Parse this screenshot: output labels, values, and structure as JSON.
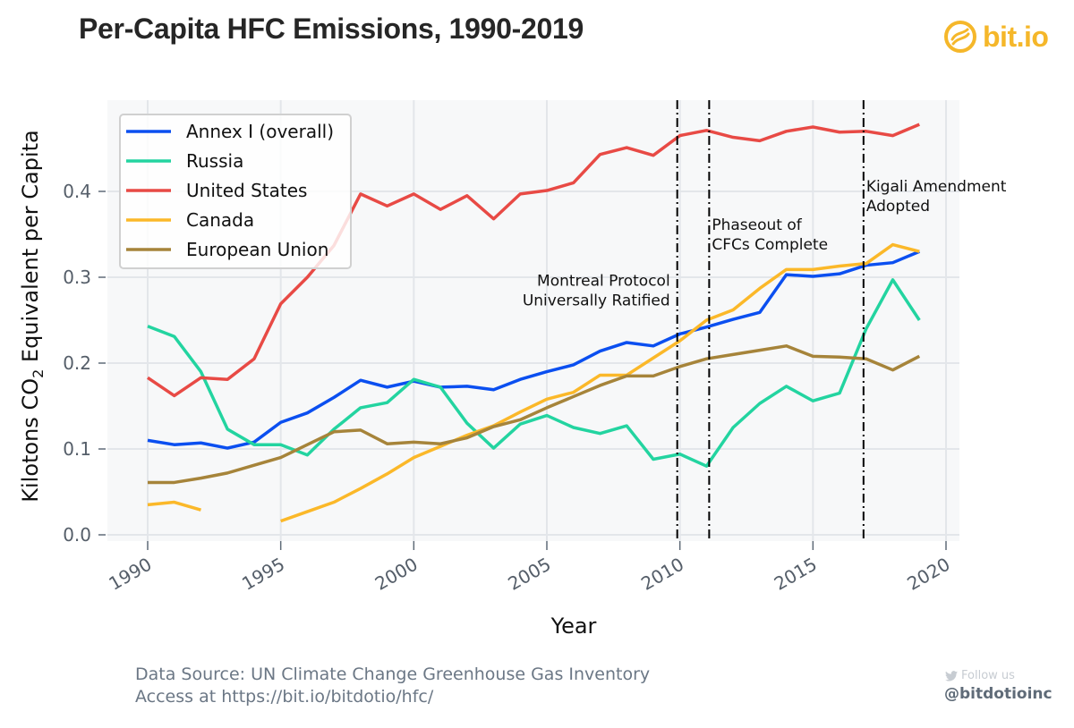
{
  "header": {
    "title": "Per-Capita HFC Emissions, 1990-2019",
    "logo_text": "bit.io",
    "logo_icon": "bitio-swirl-icon",
    "brand_color": "#f5b72a"
  },
  "footer": {
    "source_line": "Data Source: UN Climate Change Greenhouse Gas Inventory",
    "access_line": "Access at https://bit.io/bitdotio/hfc/",
    "follow_label": "Follow us",
    "follow_icon": "twitter-bird-icon",
    "handle": "@bitdotioinc"
  },
  "chart_data": {
    "type": "line",
    "title": "Per-Capita HFC Emissions, 1990-2019",
    "xlabel": "Year",
    "ylabel": "Kilotons CO2 Equivalent per Capita",
    "ylabel_parts": {
      "before": "Kilotons CO",
      "sub": "2",
      "after": " Equivalent per Capita"
    },
    "xlim": [
      1989.5,
      2020.5
    ],
    "ylim": [
      -0.007,
      0.505
    ],
    "xticks": [
      1990,
      1995,
      2000,
      2005,
      2010,
      2015,
      2020
    ],
    "xtick_labels": [
      "1990",
      "1995",
      "2000",
      "2005",
      "2010",
      "2015",
      "2020"
    ],
    "yticks": [
      0.0,
      0.1,
      0.2,
      0.3,
      0.4
    ],
    "ytick_labels": [
      "0.0",
      "0.1",
      "0.2",
      "0.3",
      "0.4"
    ],
    "grid": true,
    "legend_position": "top-left",
    "x": [
      1990,
      1991,
      1992,
      1993,
      1994,
      1995,
      1996,
      1997,
      1998,
      1999,
      2000,
      2001,
      2002,
      2003,
      2004,
      2005,
      2006,
      2007,
      2008,
      2009,
      2010,
      2011,
      2012,
      2013,
      2014,
      2015,
      2016,
      2017,
      2018,
      2019
    ],
    "series": [
      {
        "name": "Annex I (overall)",
        "color": "#0b4ff0",
        "values": [
          0.11,
          0.105,
          0.107,
          0.101,
          0.108,
          0.131,
          0.142,
          0.16,
          0.18,
          0.172,
          0.179,
          0.172,
          0.173,
          0.169,
          0.181,
          0.19,
          0.198,
          0.214,
          0.224,
          0.22,
          0.234,
          0.242,
          0.251,
          0.259,
          0.303,
          0.301,
          0.304,
          0.314,
          0.317,
          0.33
        ]
      },
      {
        "name": "Russia",
        "color": "#23d4a0",
        "values": [
          0.243,
          0.231,
          0.19,
          0.123,
          0.105,
          0.105,
          0.093,
          0.123,
          0.148,
          0.154,
          0.181,
          0.172,
          0.13,
          0.101,
          0.129,
          0.139,
          0.125,
          0.118,
          0.127,
          0.088,
          0.094,
          0.08,
          0.125,
          0.153,
          0.173,
          0.156,
          0.165,
          0.24,
          0.297,
          0.25
        ]
      },
      {
        "name": "United States",
        "color": "#e84a45",
        "values": [
          0.183,
          0.162,
          0.183,
          0.181,
          0.205,
          0.269,
          0.3,
          0.337,
          0.397,
          0.383,
          0.397,
          0.379,
          0.395,
          0.368,
          0.397,
          0.401,
          0.41,
          0.443,
          0.451,
          0.442,
          0.465,
          0.471,
          0.463,
          0.459,
          0.47,
          0.475,
          0.469,
          0.47,
          0.465,
          0.478
        ]
      },
      {
        "name": "Canada",
        "color": "#fbb829",
        "values": [
          0.035,
          0.038,
          0.029,
          null,
          null,
          0.016,
          0.027,
          0.038,
          0.054,
          0.071,
          0.09,
          0.103,
          0.116,
          0.127,
          0.143,
          0.158,
          0.166,
          0.186,
          0.186,
          0.206,
          0.226,
          0.25,
          0.262,
          0.287,
          0.309,
          0.309,
          0.313,
          0.316,
          0.338,
          0.33
        ]
      },
      {
        "name": "European Union",
        "color": "#a6843a",
        "values": [
          0.061,
          0.061,
          0.066,
          0.072,
          0.081,
          0.09,
          0.105,
          0.12,
          0.122,
          0.106,
          0.108,
          0.106,
          0.113,
          0.126,
          0.134,
          0.148,
          0.161,
          0.174,
          0.185,
          0.185,
          0.196,
          0.205,
          0.21,
          0.215,
          0.22,
          0.208,
          0.207,
          0.205,
          0.192,
          0.208
        ]
      }
    ],
    "annotations": [
      {
        "x": 2009.9,
        "label_lines": [
          "Montreal Protocol",
          "Universally Ratified"
        ],
        "align": "right",
        "label_y": 0.29
      },
      {
        "x": 2011.1,
        "label_lines": [
          "Phaseout of",
          "CFCs Complete"
        ],
        "align": "left",
        "label_y": 0.355
      },
      {
        "x": 2016.9,
        "label_lines": [
          "Kigali Amendment",
          "Adopted"
        ],
        "align": "left",
        "label_y": 0.4
      }
    ]
  }
}
